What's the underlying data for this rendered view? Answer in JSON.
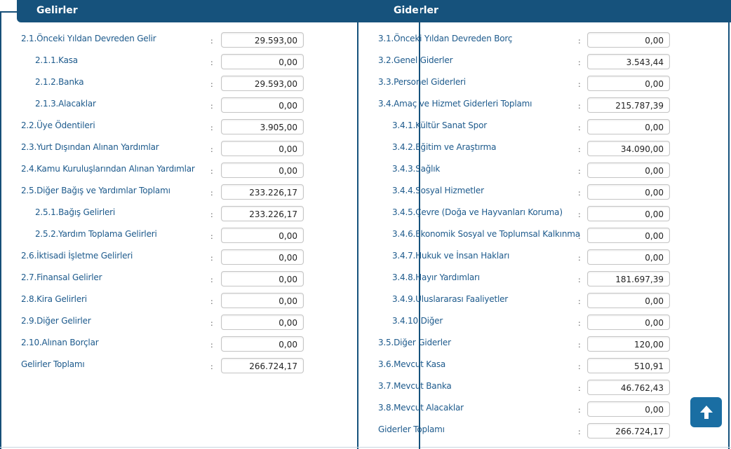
{
  "header": {
    "income_title": "Gelirler",
    "expense_title": "Giderler"
  },
  "income_rows": [
    {
      "label": "2.1.Önceki Yıldan Devreden Gelir",
      "value": "29.593,00",
      "sub": false
    },
    {
      "label": "2.1.1.Kasa",
      "value": "0,00",
      "sub": true
    },
    {
      "label": "2.1.2.Banka",
      "value": "29.593,00",
      "sub": true
    },
    {
      "label": "2.1.3.Alacaklar",
      "value": "0,00",
      "sub": true
    },
    {
      "label": "2.2.Üye Ödentileri",
      "value": "3.905,00",
      "sub": false
    },
    {
      "label": "2.3.Yurt Dışından Alınan Yardımlar",
      "value": "0,00",
      "sub": false
    },
    {
      "label": "2.4.Kamu Kuruluşlarından Alınan Yardımlar",
      "value": "0,00",
      "sub": false
    },
    {
      "label": "2.5.Diğer Bağış ve Yardımlar Toplamı",
      "value": "233.226,17",
      "sub": false
    },
    {
      "label": "2.5.1.Bağış Gelirleri",
      "value": "233.226,17",
      "sub": true
    },
    {
      "label": "2.5.2.Yardım Toplama Gelirleri",
      "value": "0,00",
      "sub": true
    },
    {
      "label": "2.6.İktisadi İşletme Gelirleri",
      "value": "0,00",
      "sub": false
    },
    {
      "label": "2.7.Finansal Gelirler",
      "value": "0,00",
      "sub": false
    },
    {
      "label": "2.8.Kira Gelirleri",
      "value": "0,00",
      "sub": false
    },
    {
      "label": "2.9.Diğer Gelirler",
      "value": "0,00",
      "sub": false
    },
    {
      "label": "2.10.Alınan Borçlar",
      "value": "0,00",
      "sub": false
    },
    {
      "label": "Gelirler Toplamı",
      "value": "266.724,17",
      "sub": false
    }
  ],
  "expense_rows": [
    {
      "label": "3.1.Önceki Yıldan Devreden Borç",
      "value": "0,00",
      "sub": false
    },
    {
      "label": "3.2.Genel Giderler",
      "value": "3.543,44",
      "sub": false
    },
    {
      "label": "3.3.Personel Giderleri",
      "value": "0,00",
      "sub": false
    },
    {
      "label": "3.4.Amaç ve Hizmet Giderleri Toplamı",
      "value": "215.787,39",
      "sub": false
    },
    {
      "label": "3.4.1.Kültür Sanat Spor",
      "value": "0,00",
      "sub": true
    },
    {
      "label": "3.4.2.Eğitim ve Araştırma",
      "value": "34.090,00",
      "sub": true
    },
    {
      "label": "3.4.3.Sağlık",
      "value": "0,00",
      "sub": true
    },
    {
      "label": "3.4.4.Sosyal Hizmetler",
      "value": "0,00",
      "sub": true
    },
    {
      "label": "3.4.5.Çevre (Doğa ve Hayvanları Koruma)",
      "value": "0,00",
      "sub": true
    },
    {
      "label": "3.4.6.Ekonomik Sosyal ve Toplumsal Kalkınma",
      "value": "0,00",
      "sub": true
    },
    {
      "label": "3.4.7.Hukuk ve İnsan Hakları",
      "value": "0,00",
      "sub": true
    },
    {
      "label": "3.4.8.Hayır Yardımları",
      "value": "181.697,39",
      "sub": true
    },
    {
      "label": "3.4.9.Uluslararası Faaliyetler",
      "value": "0,00",
      "sub": true
    },
    {
      "label": "3.4.10.Diğer",
      "value": "0,00",
      "sub": true
    },
    {
      "label": "3.5.Diğer Giderler",
      "value": "120,00",
      "sub": false
    },
    {
      "label": "3.6.Mevcut Kasa",
      "value": "510,91",
      "sub": false
    },
    {
      "label": "3.7.Mevcut Banka",
      "value": "46.762,43",
      "sub": false
    },
    {
      "label": "3.8.Mevcut Alacaklar",
      "value": "0,00",
      "sub": false
    },
    {
      "label": "Giderler Toplamı",
      "value": "266.724,17",
      "sub": false
    }
  ],
  "separator": ":",
  "scroll_top_icon": "arrow-up-icon",
  "colors": {
    "header": "#16527c",
    "label": "#1d5a8c",
    "scroll_button": "#1a6ea3"
  }
}
